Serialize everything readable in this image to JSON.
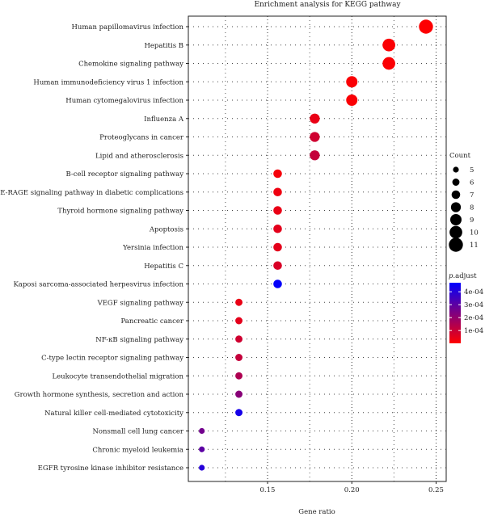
{
  "chart_data": {
    "type": "scatter",
    "title": "Enrichment analysis for KEGG pathway",
    "xlabel": "Gene ratio",
    "ylabel": "",
    "xlim": [
      0.103,
      0.256
    ],
    "x_ticks": [
      0.15,
      0.2,
      0.25
    ],
    "x_tick_labels": [
      "0.15",
      "0.20",
      "0.25"
    ],
    "grid": true,
    "size_legend": {
      "title": "Count",
      "values": [
        5,
        6,
        7,
        8,
        9,
        10,
        11
      ]
    },
    "color_legend": {
      "title_italic": "p",
      "title_rest": ".adjust",
      "ticks": [
        "4e-04",
        "3e-04",
        "2e-04",
        "1e-04"
      ],
      "tick_values": [
        0.0004,
        0.0003,
        0.0002,
        0.0001
      ],
      "range": [
        1e-06,
        0.00047
      ],
      "low_color": "#ff0000",
      "high_color": "#0000ff"
    },
    "points": [
      {
        "term": "Human papillomavirus infection",
        "gene_ratio": 0.244,
        "count": 11,
        "p_adjust": 5e-06
      },
      {
        "term": "Hepatitis B",
        "gene_ratio": 0.222,
        "count": 10,
        "p_adjust": 8e-06
      },
      {
        "term": "Chemokine signaling pathway",
        "gene_ratio": 0.222,
        "count": 10,
        "p_adjust": 8e-06
      },
      {
        "term": "Human immunodeficiency virus 1 infection",
        "gene_ratio": 0.2,
        "count": 9,
        "p_adjust": 1e-05
      },
      {
        "term": "Human cytomegalovirus infection",
        "gene_ratio": 0.2,
        "count": 9,
        "p_adjust": 1e-05
      },
      {
        "term": "Influenza A",
        "gene_ratio": 0.178,
        "count": 8,
        "p_adjust": 4e-05
      },
      {
        "term": "Proteoglycans in cancer",
        "gene_ratio": 0.178,
        "count": 8,
        "p_adjust": 9e-05
      },
      {
        "term": "Lipid and atherosclerosis",
        "gene_ratio": 0.178,
        "count": 8,
        "p_adjust": 0.00011
      },
      {
        "term": "B-cell receptor signaling pathway",
        "gene_ratio": 0.156,
        "count": 7,
        "p_adjust": 2e-05
      },
      {
        "term": "AGE-RAGE signaling pathway in diabetic complications",
        "gene_ratio": 0.156,
        "count": 7,
        "p_adjust": 3e-05
      },
      {
        "term": "Thyroid hormone signaling pathway",
        "gene_ratio": 0.156,
        "count": 7,
        "p_adjust": 4e-05
      },
      {
        "term": "Apoptosis",
        "gene_ratio": 0.156,
        "count": 7,
        "p_adjust": 5e-05
      },
      {
        "term": "Yersinia infection",
        "gene_ratio": 0.156,
        "count": 7,
        "p_adjust": 5e-05
      },
      {
        "term": "Hepatitis C",
        "gene_ratio": 0.156,
        "count": 7,
        "p_adjust": 7e-05
      },
      {
        "term": "Kaposi sarcoma-associated herpesvirus infection",
        "gene_ratio": 0.156,
        "count": 7,
        "p_adjust": 0.00046
      },
      {
        "term": "VEGF signaling pathway",
        "gene_ratio": 0.133,
        "count": 6,
        "p_adjust": 4e-05
      },
      {
        "term": "Pancreatic cancer",
        "gene_ratio": 0.133,
        "count": 6,
        "p_adjust": 5e-05
      },
      {
        "term": "NF-κB signaling pathway",
        "gene_ratio": 0.133,
        "count": 6,
        "p_adjust": 9e-05
      },
      {
        "term": "C-type lectin receptor signaling pathway",
        "gene_ratio": 0.133,
        "count": 6,
        "p_adjust": 0.00011
      },
      {
        "term": "Leukocyte transendothelial migration",
        "gene_ratio": 0.133,
        "count": 6,
        "p_adjust": 0.00015
      },
      {
        "term": "Growth hormone synthesis, secretion and action",
        "gene_ratio": 0.133,
        "count": 6,
        "p_adjust": 0.00022
      },
      {
        "term": "Natural killer cell-mediated cytotoxicity",
        "gene_ratio": 0.133,
        "count": 6,
        "p_adjust": 0.00043
      },
      {
        "term": "Nonsmall cell lung cancer",
        "gene_ratio": 0.111,
        "count": 5,
        "p_adjust": 0.00026
      },
      {
        "term": "Chronic myeloid leukemia",
        "gene_ratio": 0.111,
        "count": 5,
        "p_adjust": 0.0003
      },
      {
        "term": "EGFR tyrosine kinase inhibitor resistance",
        "gene_ratio": 0.111,
        "count": 5,
        "p_adjust": 0.0004
      }
    ]
  }
}
